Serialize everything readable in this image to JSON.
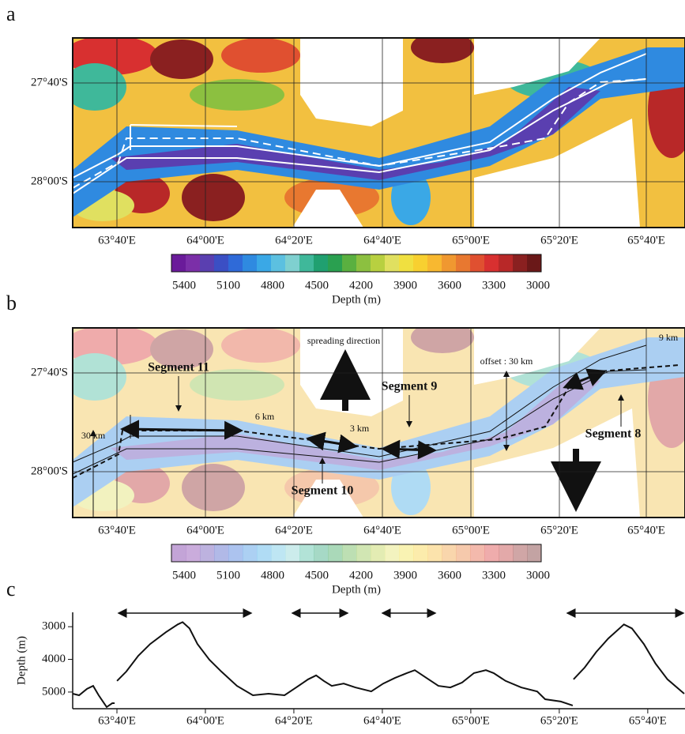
{
  "panel_a": {
    "label": "a",
    "lat_labels": [
      "27°40'S",
      "28°00'S"
    ],
    "lon_labels": [
      "63°40'E",
      "64°00'E",
      "64°20'E",
      "64°40'E",
      "65°00'E",
      "65°20'E",
      "65°40'E"
    ],
    "colorbar_labels": [
      "5400",
      "5100",
      "4800",
      "4500",
      "4200",
      "3900",
      "3600",
      "3300",
      "3000"
    ],
    "colorbar_title": "Depth (m)"
  },
  "panel_b": {
    "label": "b",
    "lat_labels": [
      "27°40'S",
      "28°00'S"
    ],
    "lon_labels": [
      "63°40'E",
      "64°00'E",
      "64°20'E",
      "64°40'E",
      "65°00'E",
      "65°20'E",
      "65°40'E"
    ],
    "colorbar_labels": [
      "5400",
      "5100",
      "4800",
      "4500",
      "4200",
      "3900",
      "3600",
      "3300",
      "3000"
    ],
    "colorbar_title": "Depth (m)",
    "annotations": [
      "spreading direction",
      "Segment 11",
      "Segment 9",
      "Segment 8",
      "Segment 10",
      "offset : 30 km",
      "9 km",
      "30 km",
      "6 km",
      "3 km"
    ]
  },
  "chart_data": {
    "type": "line",
    "label": "c",
    "ylabel": "Depth (m)",
    "x": [
      63.5,
      63.524,
      63.554,
      63.577,
      63.598,
      63.628,
      63.649,
      63.658,
      63.662,
      63.667,
      63.702,
      63.747,
      63.792,
      63.851,
      63.896,
      63.914,
      63.94,
      63.97,
      64.015,
      64.06,
      64.119,
      64.179,
      64.238,
      64.298,
      64.342,
      64.387,
      64.417,
      64.446,
      64.476,
      64.521,
      64.565,
      64.625,
      64.67,
      64.714,
      64.759,
      64.789,
      64.833,
      64.878,
      64.923,
      64.967,
      65.012,
      65.057,
      65.086,
      65.131,
      65.19,
      65.25,
      65.28,
      65.339,
      65.384,
      65.385,
      65.387,
      65.429,
      65.473,
      65.518,
      65.577,
      65.607,
      65.652,
      65.696,
      65.741,
      65.804
    ],
    "series": [
      {
        "color": "#111111",
        "values": [
          5050,
          5100,
          4900,
          4810,
          5100,
          5460,
          5340,
          5340,
          null,
          4660,
          4370,
          3890,
          3530,
          3170,
          2930,
          2860,
          3050,
          3530,
          4010,
          4370,
          4810,
          5100,
          5050,
          5100,
          4860,
          4610,
          4490,
          4660,
          4810,
          4740,
          4860,
          4980,
          4740,
          4570,
          4420,
          4330,
          4570,
          4810,
          4860,
          4710,
          4420,
          4330,
          4420,
          4660,
          4860,
          4980,
          5220,
          5290,
          5410,
          null,
          4610,
          4250,
          3770,
          3360,
          2930,
          3050,
          3530,
          4130,
          4610,
          5050
        ]
      }
    ],
    "xlim": [
      63.5,
      65.807
    ],
    "ylim": [
      2560,
      5510
    ],
    "y_reversed": true,
    "yticks": [
      3000,
      4000,
      5000
    ],
    "xticks": [
      {
        "value": 63.6667,
        "label": "63°40'E"
      },
      {
        "value": 64.0,
        "label": "64°00'E"
      },
      {
        "value": 64.3333,
        "label": "64°20'E"
      },
      {
        "value": 64.6667,
        "label": "64°40'E"
      },
      {
        "value": 65.0,
        "label": "65°00'E"
      },
      {
        "value": 65.3333,
        "label": "65°20'E"
      },
      {
        "value": 65.6667,
        "label": "65°40'E"
      }
    ]
  }
}
